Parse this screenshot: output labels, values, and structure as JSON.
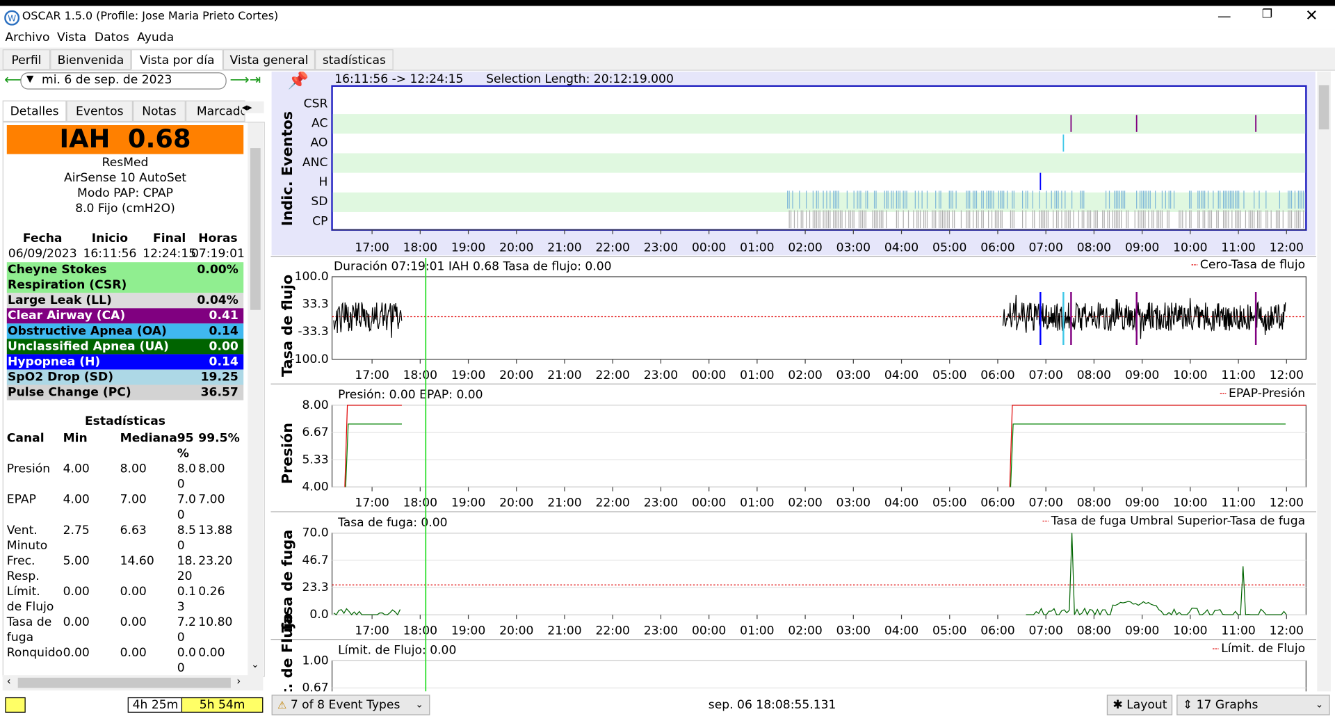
{
  "window": {
    "title": "OSCAR 1.5.0 (Profile: Jose Maria Prieto Cortes)"
  },
  "menu": [
    "Archivo",
    "Vista",
    "Datos",
    "Ayuda"
  ],
  "tabs": [
    "Perfil",
    "Bienvenida",
    "Vista por día",
    "Vista general",
    "stadísticas"
  ],
  "date": "mi. 6 de sep. de 2023",
  "side_tabs": [
    "Detalles",
    "Eventos",
    "Notas",
    "Marcado"
  ],
  "summary": {
    "ahi": "IAH  0.68",
    "lines": [
      "ResMed",
      "AirSense 10 AutoSet",
      "Modo PAP: CPAP",
      "8.0 Fijo (cmH2O)"
    ]
  },
  "session": {
    "headers": [
      "Fecha",
      "Inicio",
      "Final",
      "Horas"
    ],
    "values": [
      "06/09/2023",
      "16:11:56",
      "12:24:15",
      "07:19:01"
    ]
  },
  "events": [
    {
      "label": "Cheyne Stokes Respiration (CSR)",
      "value": "0.00%",
      "bg": "#90ee90",
      "fg": "#000000"
    },
    {
      "label": "Large Leak (LL)",
      "value": "0.04%",
      "bg": "#dcdcdc",
      "fg": "#000000"
    },
    {
      "label": "Clear Airway (CA)",
      "value": "0.41",
      "bg": "#800080",
      "fg": "#ffffff"
    },
    {
      "label": "Obstructive Apnea (OA)",
      "value": "0.14",
      "bg": "#40b8f0",
      "fg": "#000000"
    },
    {
      "label": "Unclassified Apnea (UA)",
      "value": "0.00",
      "bg": "#006400",
      "fg": "#ffffff"
    },
    {
      "label": "Hypopnea (H)",
      "value": "0.14",
      "bg": "#0000ff",
      "fg": "#ffffff"
    },
    {
      "label": "SpO2 Drop (SD)",
      "value": "19.25",
      "bg": "#add8e6",
      "fg": "#000000"
    },
    {
      "label": "Pulse Change (PC)",
      "value": "36.57",
      "bg": "#d3d3d3",
      "fg": "#000000"
    }
  ],
  "stats": {
    "title": "Estadísticas",
    "headers": [
      "Canal",
      "Min",
      "Mediana",
      "95 %",
      "99.5%"
    ],
    "rows": [
      [
        "Presión",
        "4.00",
        "8.00",
        "8.00",
        "8.00"
      ],
      [
        "EPAP",
        "4.00",
        "7.00",
        "7.00",
        "7.00"
      ],
      [
        "Vent. Minuto",
        "2.75",
        "6.63",
        "8.50",
        "13.88"
      ],
      [
        "Frec. Resp.",
        "5.00",
        "14.60",
        "18.20",
        "23.20"
      ],
      [
        "Límit. de Flujo",
        "0.00",
        "0.00",
        "0.13",
        "0.26"
      ],
      [
        "Tasa de fuga",
        "0.00",
        "0.00",
        "7.20",
        "10.80"
      ],
      [
        "Ronquido",
        "0.00",
        "0.00",
        "0.00",
        "0.00"
      ]
    ]
  },
  "graphs": [
    {
      "ylabel": "Indic. Eventos",
      "info": [
        "16:11:56 -> 12:24:15",
        "Selection Length: 20:12:19.000"
      ],
      "rows": [
        "CSR",
        "AC",
        "AO",
        "ANC",
        "H",
        "SD",
        "CP"
      ]
    },
    {
      "ylabel": "Tasa de flujo",
      "info": "Duración 07:19:01 IAH 0.68 Tasa de flujo: 0.00",
      "legend": "Cero-Tasa de flujo",
      "yticks": [
        "100.0",
        "33.3",
        "-33.3",
        "-100.0"
      ]
    },
    {
      "ylabel": "Presión",
      "info": "Presión: 0.00 EPAP: 0.00",
      "legend": "EPAP-Presión",
      "yticks": [
        "8.00",
        "6.67",
        "5.33",
        "4.00"
      ]
    },
    {
      "ylabel": "Tasa de fuga",
      "info": "Tasa de fuga: 0.00",
      "legend": "Tasa de fuga Umbral Superior-Tasa de fuga",
      "yticks": [
        "70.0",
        "46.7",
        "23.3",
        "0.0"
      ]
    },
    {
      "ylabel": "Límit. de Flujo",
      "info": "Límit. de Flujo: 0.00",
      "legend": "Límit. de Flujo",
      "yticks": [
        "1.00",
        "0.67"
      ]
    }
  ],
  "xticks": [
    "17:00",
    "18:00",
    "19:00",
    "20:00",
    "21:00",
    "22:00",
    "23:00",
    "00:00",
    "01:00",
    "02:00",
    "03:00",
    "04:00",
    "05:00",
    "06:00",
    "07:00",
    "08:00",
    "09:00",
    "10:00",
    "11:00",
    "12:00"
  ],
  "status": {
    "durations": [
      "4h 25m",
      "5h 54m"
    ],
    "event_types": "7 of 8 Event Types",
    "time": "sep. 06 18:08:55.131",
    "layout": "Layout",
    "graphs": "17 Graphs"
  }
}
